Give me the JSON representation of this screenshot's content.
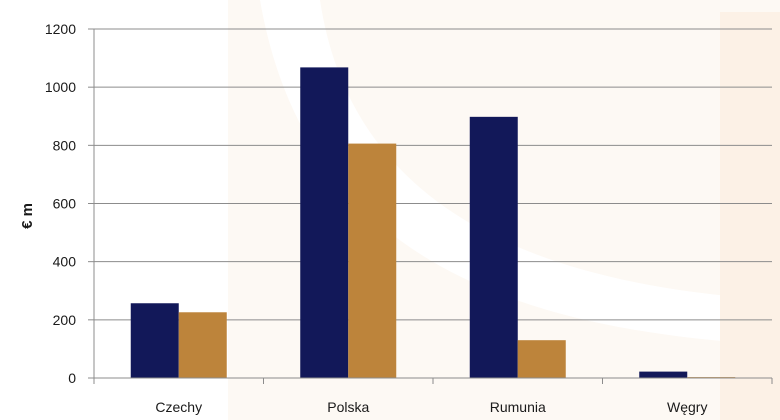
{
  "chart_data": {
    "type": "bar",
    "categories": [
      "Czechy",
      "Polska",
      "Rumunia",
      "Węgry"
    ],
    "series": [
      {
        "values": [
          257,
          1068,
          898,
          22
        ]
      },
      {
        "values": [
          226,
          806,
          130,
          3
        ]
      }
    ],
    "title": "",
    "xlabel": "",
    "ylabel": "€ m",
    "ylim": [
      0,
      1200
    ],
    "yticks": [
      0,
      200,
      400,
      600,
      800,
      1000,
      1200
    ],
    "grid": true,
    "legend": "none",
    "colors": [
      "#121859",
      "#bd843b"
    ]
  }
}
